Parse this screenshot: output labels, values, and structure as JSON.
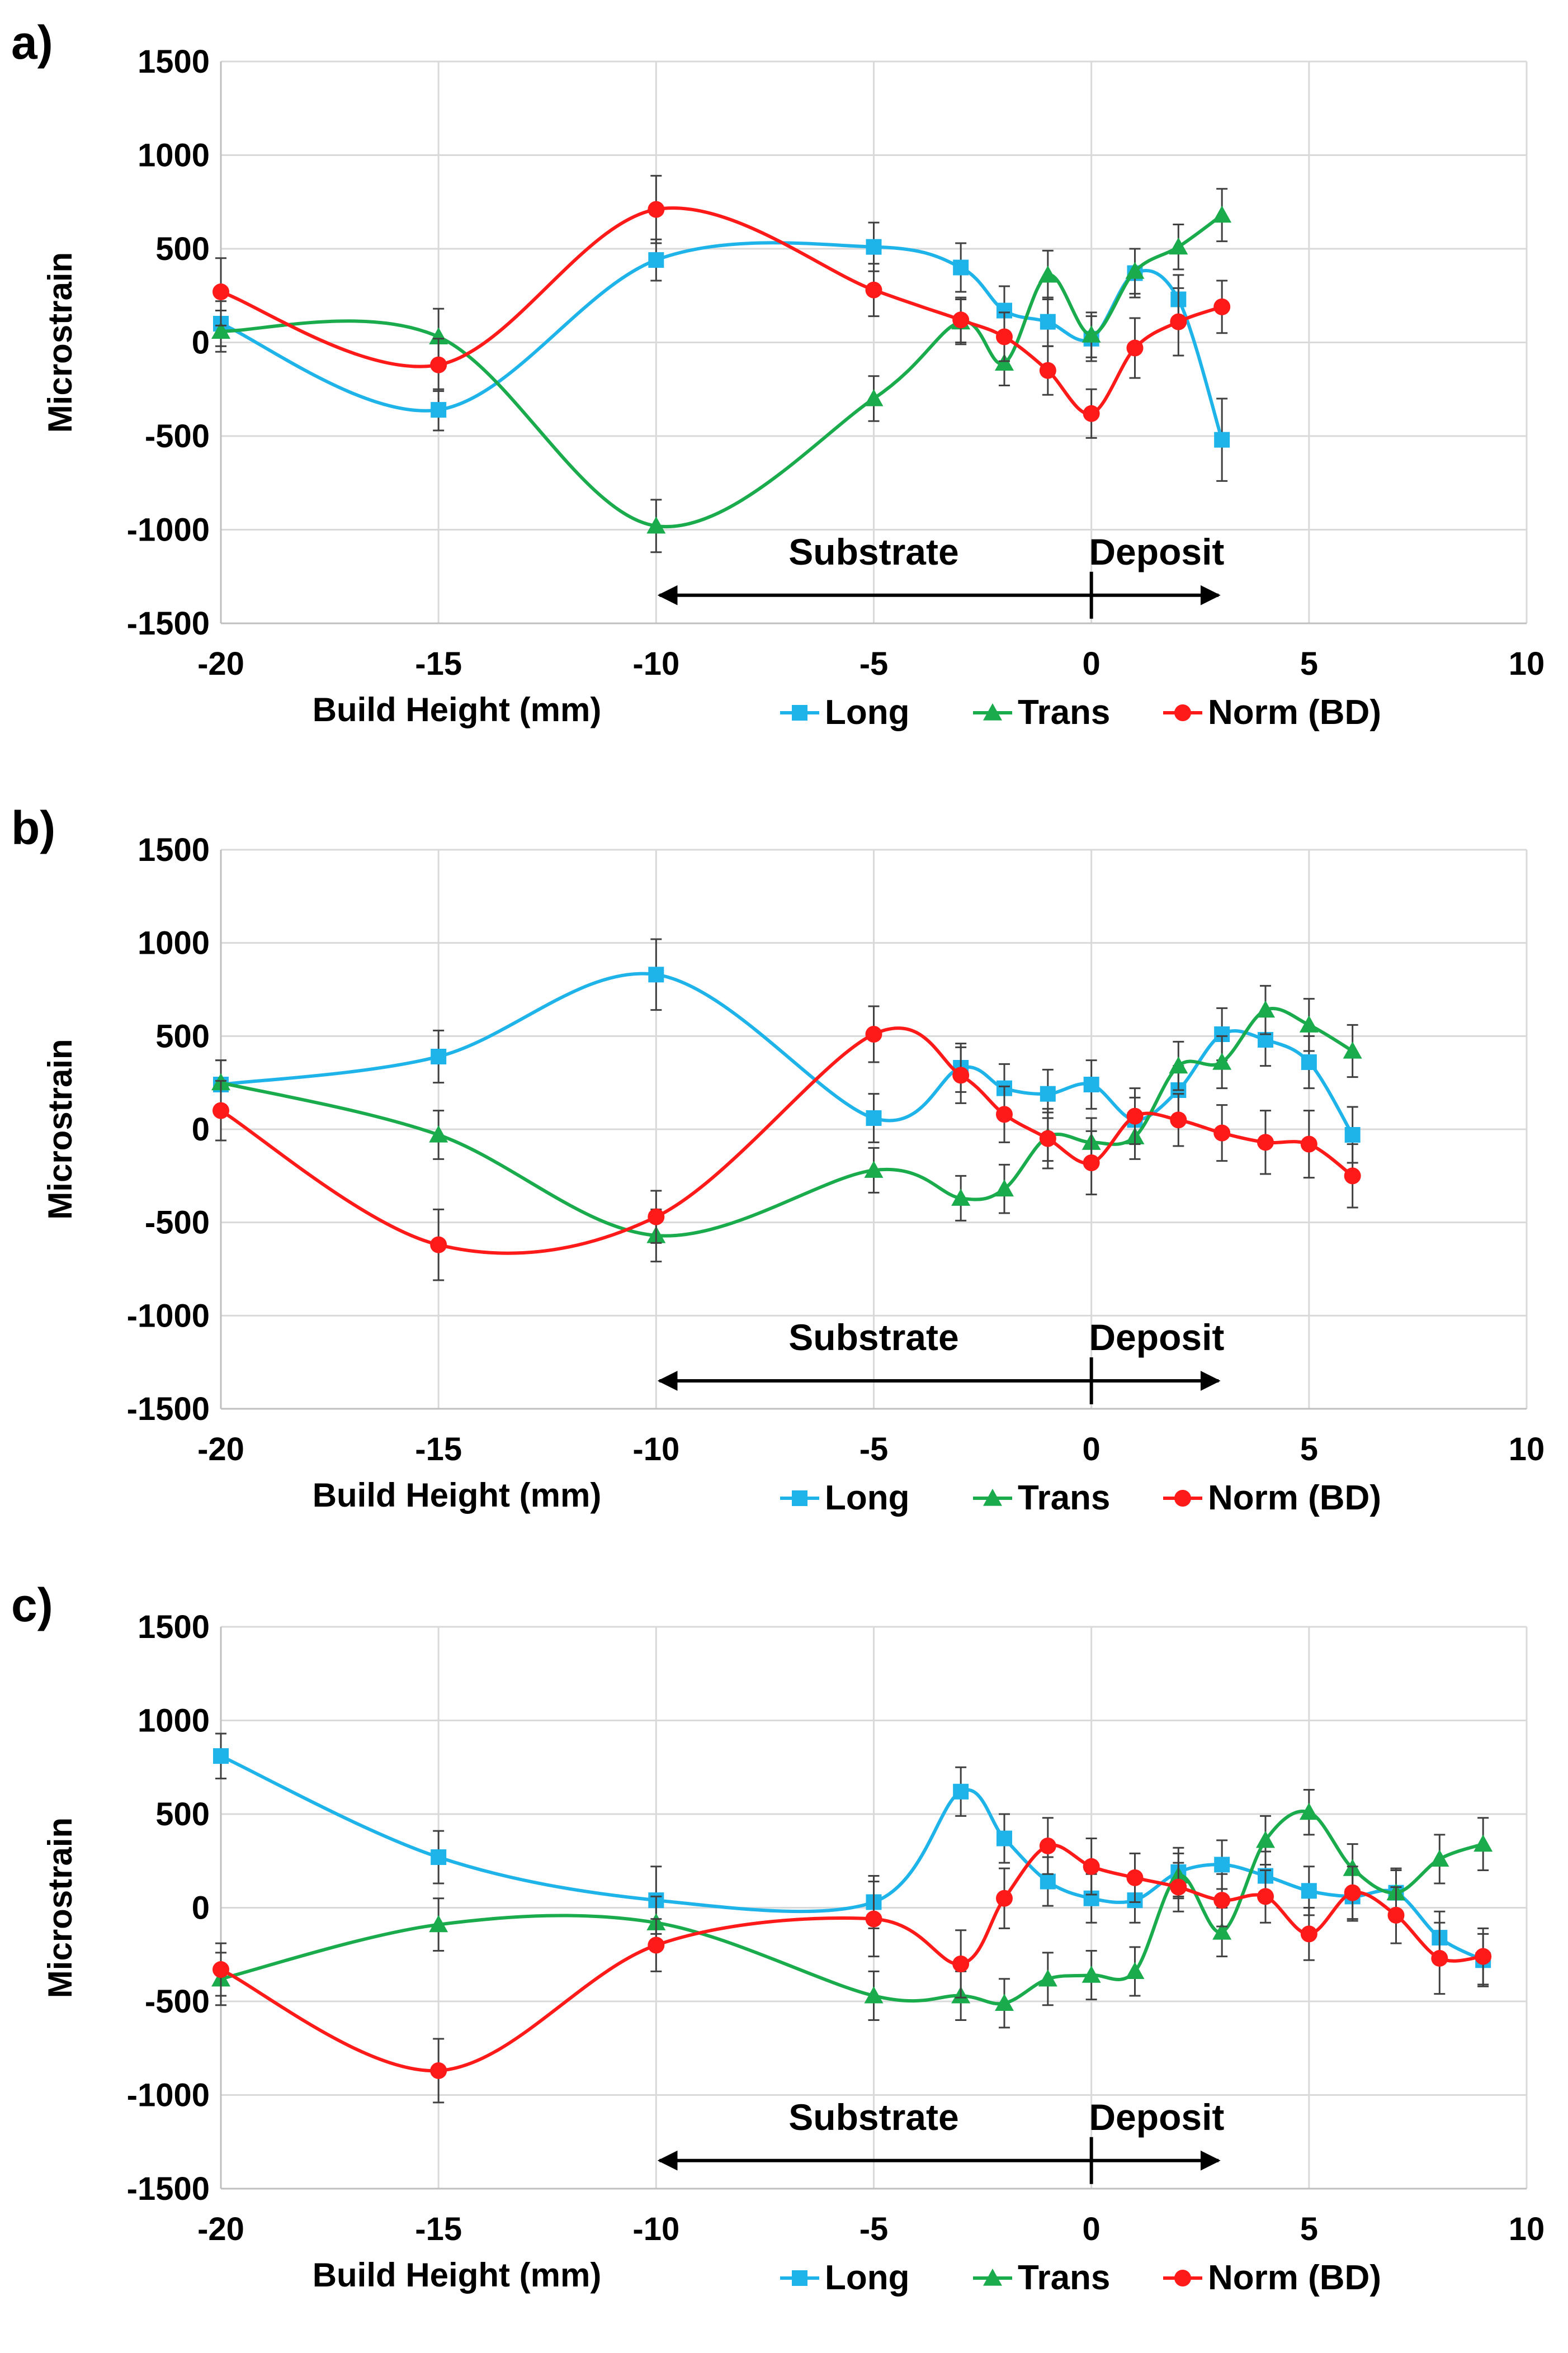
{
  "chart_data": [
    {
      "panel": "a)",
      "type": "line",
      "xlabel": "Build Height (mm)",
      "ylabel": "Microstrain",
      "xlim": [
        -20,
        10
      ],
      "ylim": [
        -1500,
        1500
      ],
      "xticks": [
        -20,
        -15,
        -10,
        -5,
        0,
        5,
        10
      ],
      "yticks": [
        -1500,
        -1000,
        -500,
        0,
        500,
        1000,
        1500
      ],
      "annotation": {
        "substrate": "Substrate",
        "deposit": "Deposit",
        "arrow_from": -10,
        "arrow_to": 3,
        "divider": 0
      },
      "legend": [
        "Long",
        "Trans",
        "Norm (BD)"
      ],
      "series": [
        {
          "name": "Long",
          "color": "#1fb4e9",
          "marker": "square",
          "x": [
            -20,
            -15,
            -10,
            -5,
            -3,
            -2,
            -1,
            0,
            1,
            2,
            3
          ],
          "y": [
            100,
            -360,
            440,
            510,
            400,
            170,
            110,
            20,
            370,
            230,
            -520
          ],
          "err": [
            120,
            110,
            110,
            130,
            130,
            130,
            130,
            120,
            130,
            130,
            220
          ]
        },
        {
          "name": "Trans",
          "color": "#1aab4c",
          "marker": "triangle",
          "x": [
            -20,
            -15,
            -10,
            -5,
            -3,
            -2,
            -1,
            0,
            1,
            2,
            3
          ],
          "y": [
            60,
            30,
            -980,
            -300,
            110,
            -110,
            360,
            40,
            380,
            510,
            680
          ],
          "err": [
            110,
            150,
            140,
            120,
            120,
            120,
            130,
            120,
            120,
            120,
            140
          ]
        },
        {
          "name": "Norm (BD)",
          "color": "#ff1a1a",
          "marker": "circle",
          "x": [
            -20,
            -15,
            -10,
            -5,
            -3,
            -2,
            -1,
            0,
            1,
            2,
            3
          ],
          "y": [
            270,
            -120,
            710,
            280,
            120,
            30,
            -150,
            -380,
            -30,
            110,
            190
          ],
          "err": [
            180,
            140,
            180,
            140,
            120,
            130,
            130,
            130,
            160,
            180,
            140
          ]
        }
      ]
    },
    {
      "panel": "b)",
      "type": "line",
      "xlabel": "Build Height (mm)",
      "ylabel": "Microstrain",
      "xlim": [
        -20,
        10
      ],
      "ylim": [
        -1500,
        1500
      ],
      "xticks": [
        -20,
        -15,
        -10,
        -5,
        0,
        5,
        10
      ],
      "yticks": [
        -1500,
        -1000,
        -500,
        0,
        500,
        1000,
        1500
      ],
      "annotation": {
        "substrate": "Substrate",
        "deposit": "Deposit",
        "arrow_from": -10,
        "arrow_to": 3,
        "divider": 0
      },
      "legend": [
        "Long",
        "Trans",
        "Norm (BD)"
      ],
      "series": [
        {
          "name": "Long",
          "color": "#1fb4e9",
          "marker": "square",
          "x": [
            -20,
            -15,
            -10,
            -5,
            -3,
            -2,
            -1,
            0,
            1,
            2,
            3,
            4,
            5,
            6
          ],
          "y": [
            240,
            390,
            830,
            60,
            330,
            220,
            190,
            240,
            50,
            210,
            510,
            480,
            360,
            -30
          ],
          "err": [
            130,
            140,
            190,
            130,
            130,
            130,
            130,
            130,
            120,
            130,
            140,
            140,
            140,
            150
          ]
        },
        {
          "name": "Trans",
          "color": "#1aab4c",
          "marker": "triangle",
          "x": [
            -20,
            -15,
            -10,
            -5,
            -3,
            -2,
            -1,
            0,
            1,
            2,
            3,
            4,
            5,
            6
          ],
          "y": [
            250,
            -30,
            -570,
            -220,
            -370,
            -320,
            -40,
            -70,
            -40,
            340,
            360,
            640,
            560,
            420
          ],
          "err": [
            120,
            130,
            140,
            120,
            120,
            130,
            130,
            130,
            120,
            130,
            140,
            130,
            140,
            140
          ]
        },
        {
          "name": "Norm (BD)",
          "color": "#ff1a1a",
          "marker": "circle",
          "x": [
            -20,
            -15,
            -10,
            -5,
            -3,
            -2,
            -1,
            0,
            1,
            2,
            3,
            4,
            5,
            6
          ],
          "y": [
            100,
            -620,
            -470,
            510,
            290,
            80,
            -50,
            -180,
            70,
            50,
            -20,
            -70,
            -80,
            -250
          ],
          "err": [
            160,
            190,
            140,
            150,
            150,
            150,
            160,
            170,
            150,
            140,
            150,
            170,
            180,
            170
          ]
        }
      ]
    },
    {
      "panel": "c)",
      "type": "line",
      "xlabel": "Build Height (mm)",
      "ylabel": "Microstrain",
      "xlim": [
        -20,
        10
      ],
      "ylim": [
        -1500,
        1500
      ],
      "xticks": [
        -20,
        -15,
        -10,
        -5,
        0,
        5,
        10
      ],
      "yticks": [
        -1500,
        -1000,
        -500,
        0,
        500,
        1000,
        1500
      ],
      "annotation": {
        "substrate": "Substrate",
        "deposit": "Deposit",
        "arrow_from": -10,
        "arrow_to": 3,
        "divider": 0
      },
      "legend": [
        "Long",
        "Trans",
        "Norm (BD)"
      ],
      "series": [
        {
          "name": "Long",
          "color": "#1fb4e9",
          "marker": "square",
          "x": [
            -20,
            -15,
            -10,
            -5,
            -3,
            -2,
            -1,
            0,
            1,
            2,
            3,
            4,
            5,
            6,
            7,
            8,
            9
          ],
          "y": [
            810,
            270,
            40,
            30,
            620,
            370,
            140,
            50,
            40,
            190,
            230,
            170,
            90,
            60,
            80,
            -160,
            -280
          ],
          "err": [
            120,
            140,
            180,
            140,
            130,
            130,
            130,
            130,
            120,
            130,
            130,
            130,
            130,
            130,
            130,
            140,
            140
          ]
        },
        {
          "name": "Trans",
          "color": "#1aab4c",
          "marker": "triangle",
          "x": [
            -20,
            -15,
            -10,
            -5,
            -3,
            -2,
            -1,
            0,
            1,
            2,
            3,
            4,
            5,
            6,
            7,
            8,
            9
          ],
          "y": [
            -380,
            -90,
            -80,
            -470,
            -470,
            -510,
            -380,
            -360,
            -340,
            170,
            -130,
            360,
            510,
            210,
            80,
            260,
            340
          ],
          "err": [
            140,
            140,
            140,
            130,
            130,
            130,
            140,
            130,
            130,
            120,
            130,
            130,
            120,
            130,
            120,
            130,
            140
          ]
        },
        {
          "name": "Norm (BD)",
          "color": "#ff1a1a",
          "marker": "circle",
          "x": [
            -20,
            -15,
            -10,
            -5,
            -3,
            -2,
            -1,
            0,
            1,
            2,
            3,
            4,
            5,
            6,
            7,
            8,
            9
          ],
          "y": [
            -330,
            -870,
            -200,
            -60,
            -300,
            50,
            330,
            220,
            160,
            110,
            40,
            60,
            -140,
            80,
            -40,
            -270,
            -260
          ],
          "err": [
            140,
            170,
            140,
            200,
            180,
            160,
            150,
            150,
            130,
            130,
            140,
            140,
            140,
            140,
            150,
            190,
            150
          ]
        }
      ]
    }
  ]
}
